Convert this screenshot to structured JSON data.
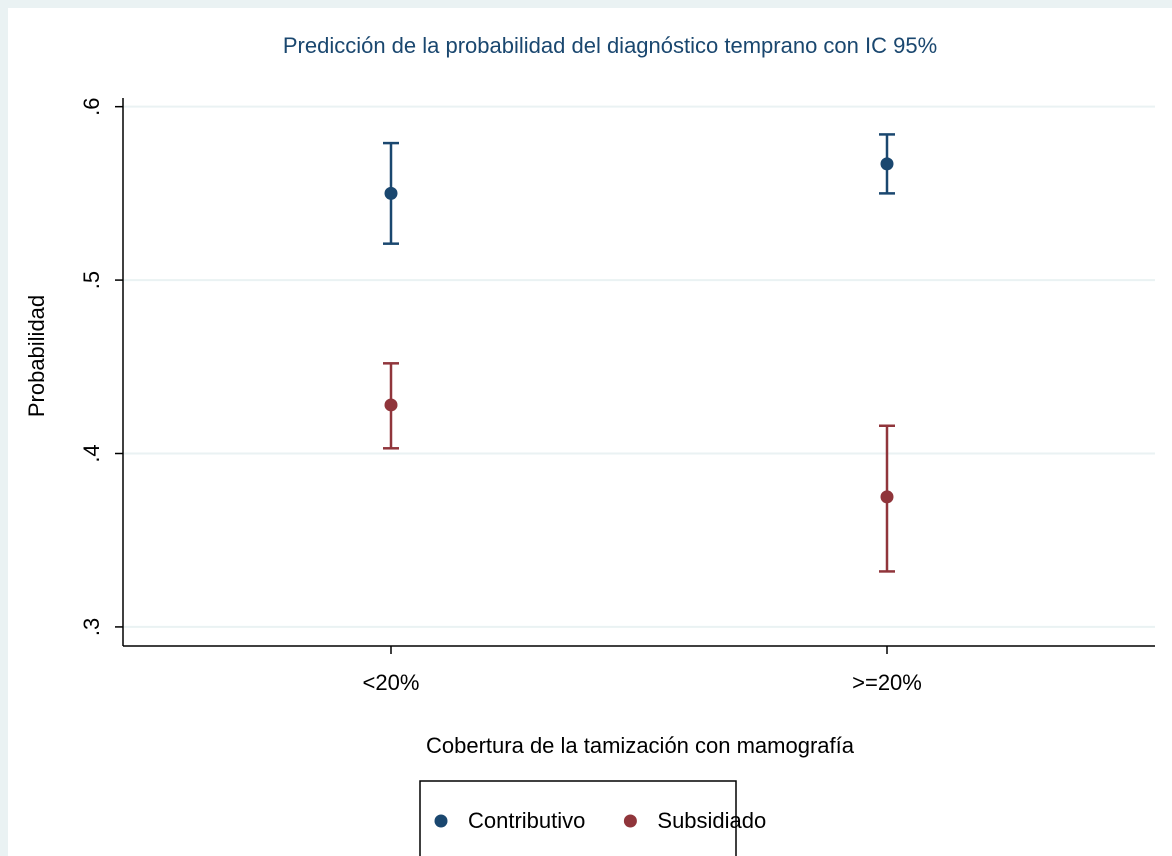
{
  "chart_data": {
    "type": "errorbar",
    "title": "Predicción de la probabilidad del diagnóstico temprano con IC 95%",
    "x_label": "Cobertura de la tamización con mamografía",
    "y_label": "Probabilidad",
    "categories": [
      "<20%",
      ">=20%"
    ],
    "series": [
      {
        "name": "Contributivo",
        "color": "#1a476f",
        "values": [
          0.55,
          0.567
        ],
        "lower": [
          0.521,
          0.55
        ],
        "upper": [
          0.579,
          0.584
        ]
      },
      {
        "name": "Subsidiado",
        "color": "#90353b",
        "values": [
          0.428,
          0.375
        ],
        "lower": [
          0.403,
          0.332
        ],
        "upper": [
          0.452,
          0.416
        ]
      }
    ],
    "ylim": [
      0.289,
      0.605
    ],
    "yticks": [
      {
        "value": 0.3,
        "label": ".3"
      },
      {
        "value": 0.4,
        "label": ".4"
      },
      {
        "value": 0.5,
        "label": ".5"
      },
      {
        "value": 0.6,
        "label": ".6"
      }
    ],
    "grid": true,
    "legend": "bottom"
  }
}
